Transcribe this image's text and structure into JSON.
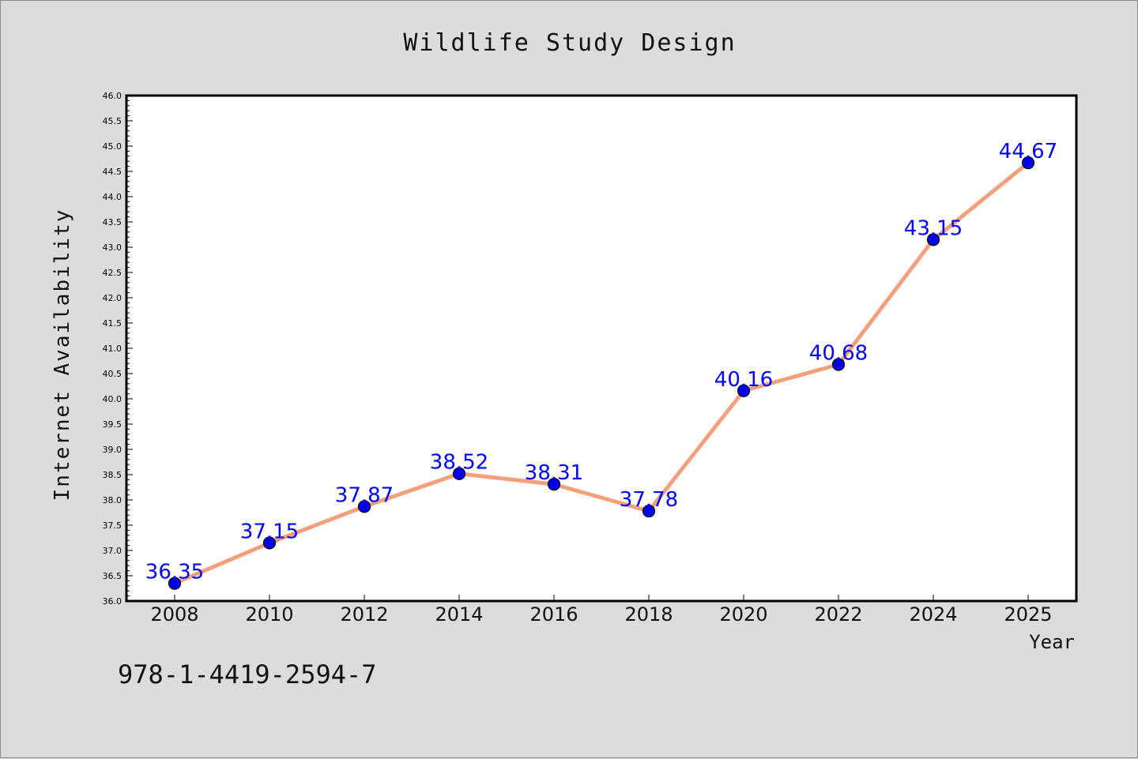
{
  "chart_data": {
    "type": "line",
    "title": "Wildlife Study Design",
    "xlabel": "Year",
    "ylabel": "Internet Availability",
    "x": [
      "2008",
      "2010",
      "2012",
      "2014",
      "2016",
      "2018",
      "2020",
      "2022",
      "2024",
      "2025"
    ],
    "series": [
      {
        "values": [
          36.35,
          37.15,
          37.87,
          38.52,
          38.31,
          37.78,
          40.16,
          40.68,
          43.15,
          44.67
        ],
        "labels": [
          "36.35",
          "37.15",
          "37.87",
          "38.52",
          "38.31",
          "37.78",
          "40.16",
          "40.68",
          "43.15",
          "44.67"
        ],
        "line_color": "#f4a07c",
        "marker_color": "#0000ee",
        "label_color": "#0000ff"
      }
    ],
    "ylim": [
      36.0,
      46.0
    ],
    "yticks": [
      "36.0",
      "36.5",
      "37.0",
      "37.5",
      "38.0",
      "38.5",
      "39.0",
      "39.5",
      "40.0",
      "40.5",
      "41.0",
      "41.5",
      "42.0",
      "42.5",
      "43.0",
      "43.5",
      "44.0",
      "44.5",
      "45.0",
      "45.5",
      "46.0"
    ],
    "grid": false,
    "legend": "none"
  },
  "footnote": "978-1-4419-2594-7",
  "colors": {
    "background": "#dcdcdc",
    "plot_background": "#ffffff"
  }
}
